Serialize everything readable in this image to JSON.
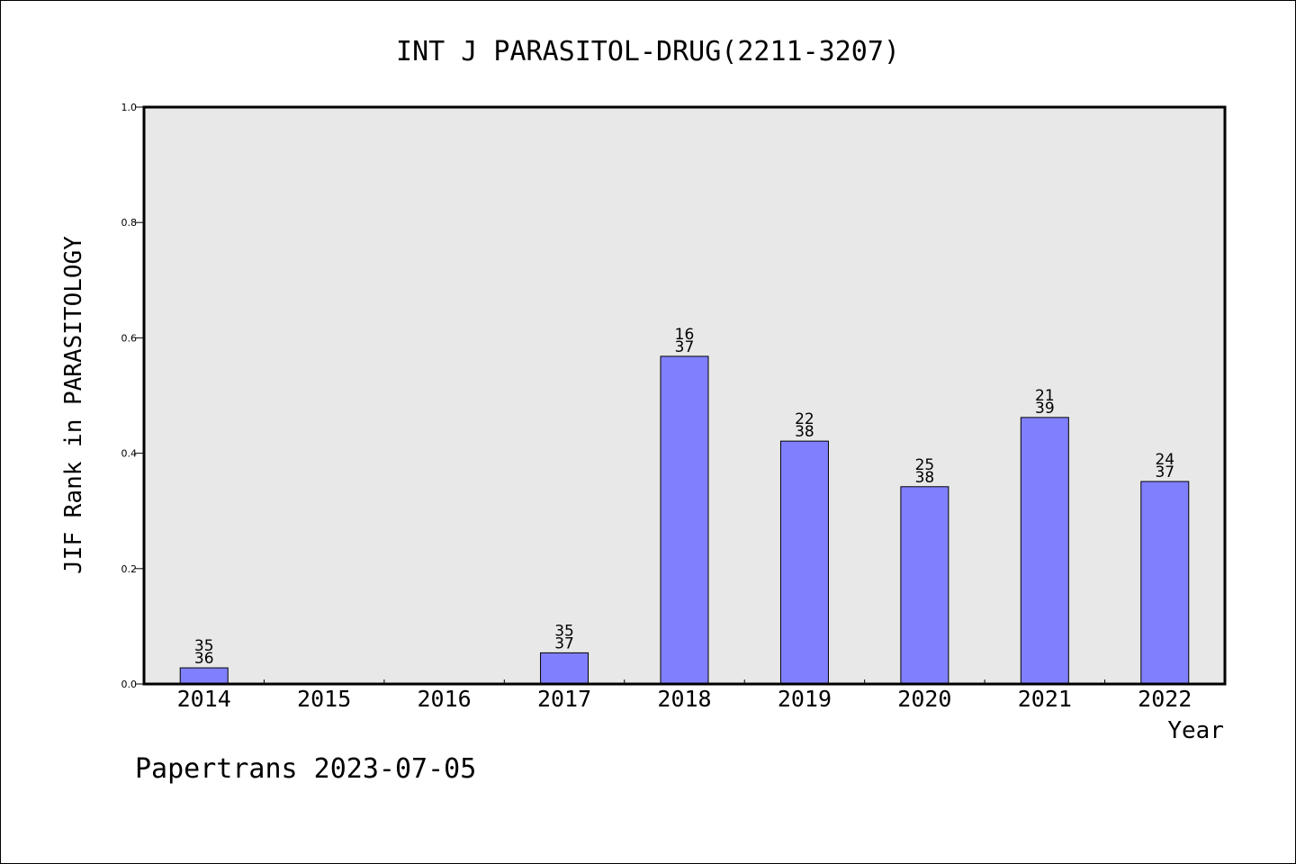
{
  "chart_data": {
    "type": "bar",
    "title": "INT J PARASITOL-DRUG(2211-3207)",
    "xlabel": "Year",
    "ylabel": "JIF Rank in PARASITOLOGY",
    "ylim": [
      0,
      1.0
    ],
    "yticks": [
      "0.0",
      "0.2",
      "0.4",
      "0.6",
      "0.8",
      "1.0"
    ],
    "grid": false,
    "categories": [
      "2014",
      "2015",
      "2016",
      "2017",
      "2018",
      "2019",
      "2020",
      "2021",
      "2022"
    ],
    "values": [
      0.028,
      null,
      null,
      0.054,
      0.568,
      0.421,
      0.342,
      0.462,
      0.351
    ],
    "ranks": [
      "35",
      "",
      "",
      "35",
      "16",
      "22",
      "25",
      "21",
      "24"
    ],
    "totals": [
      "36",
      "",
      "",
      "37",
      "37",
      "38",
      "38",
      "39",
      "37"
    ],
    "bar_color": "#8080ff",
    "plot_background": "#e8e8e8"
  },
  "footer": {
    "watermark": "Papertrans 2023-07-05"
  }
}
